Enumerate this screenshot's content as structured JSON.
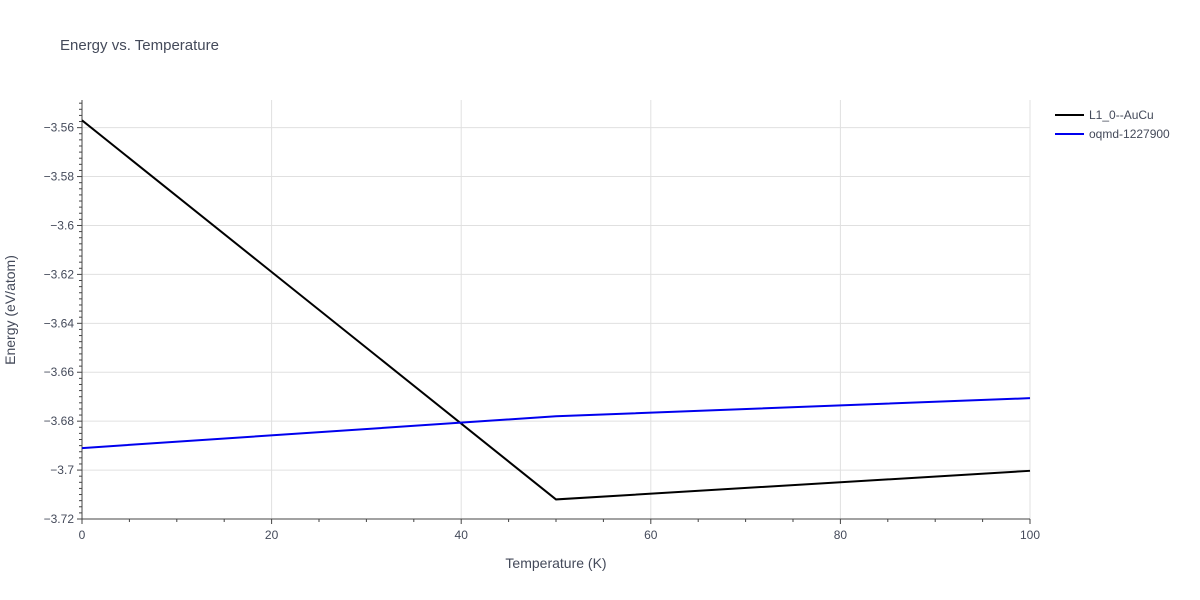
{
  "chart_data": {
    "type": "line",
    "title": "Energy vs. Temperature",
    "xlabel": "Temperature (K)",
    "ylabel": "Energy (eV/atom)",
    "xlim": [
      0,
      100
    ],
    "ylim": [
      -3.72,
      -3.5487
    ],
    "x_ticks": [
      0,
      20,
      40,
      60,
      80,
      100
    ],
    "x_tick_labels": [
      "0",
      "20",
      "40",
      "60",
      "80",
      "100"
    ],
    "y_ticks": [
      -3.72,
      -3.7,
      -3.68,
      -3.66,
      -3.64,
      -3.62,
      -3.6,
      -3.58,
      -3.56
    ],
    "y_tick_labels": [
      "−3.72",
      "−3.7",
      "−3.68",
      "−3.66",
      "−3.64",
      "−3.62",
      "−3.6",
      "−3.58",
      "−3.56"
    ],
    "grid": true,
    "legend_position": "top-right",
    "series": [
      {
        "name": "L1_0--AuCu",
        "color": "#000000",
        "x": [
          0,
          50,
          100
        ],
        "y": [
          -3.557,
          -3.712,
          -3.7003
        ]
      },
      {
        "name": "oqmd-1227900",
        "color": "#0000ee",
        "x": [
          0,
          50,
          100
        ],
        "y": [
          -3.691,
          -3.678,
          -3.6706
        ]
      }
    ]
  }
}
